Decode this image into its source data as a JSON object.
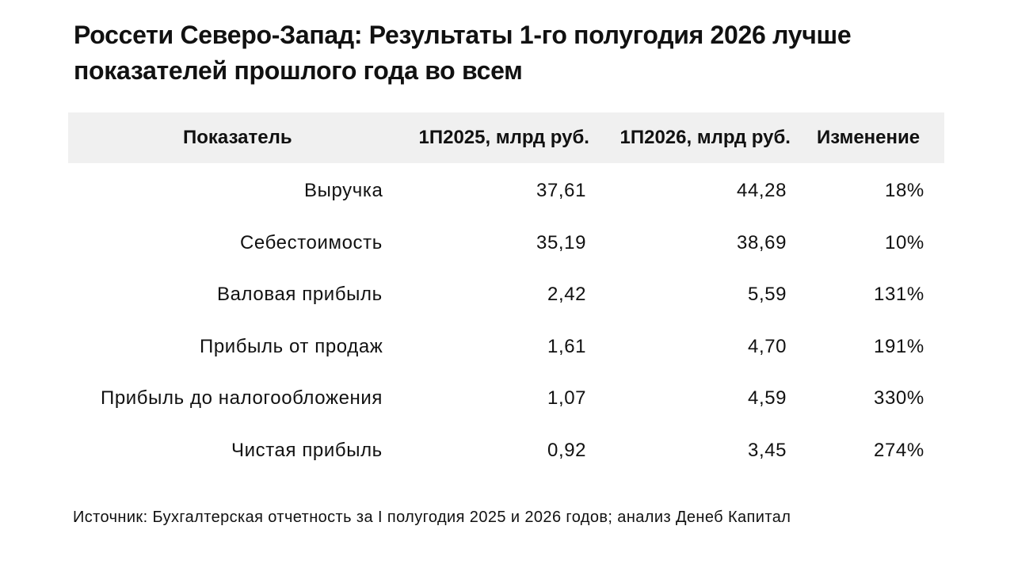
{
  "title": "Россети Северо-Запад: Результаты 1-го полугодия 2026 лучше показателей прошлого года во всем",
  "table": {
    "header": [
      "Показатель",
      "1П2025, млрд руб.",
      "1П2026, млрд руб.",
      "Изменение"
    ],
    "rows": [
      [
        "Выручка",
        "37,61",
        "44,28",
        "18%"
      ],
      [
        "Себестоимость",
        "35,19",
        "38,69",
        "10%"
      ],
      [
        "Валовая прибыль",
        "2,42",
        "5,59",
        "131%"
      ],
      [
        "Прибыль от продаж",
        "1,61",
        "4,70",
        "191%"
      ],
      [
        "Прибыль до налогообложения",
        "1,07",
        "4,59",
        "330%"
      ],
      [
        "Чистая прибыль",
        "0,92",
        "3,45",
        "274%"
      ]
    ]
  },
  "source": "Источник: Бухгалтерская отчетность за I полугодия 2025 и 2026 годов; анализ Денеб Капитал"
}
